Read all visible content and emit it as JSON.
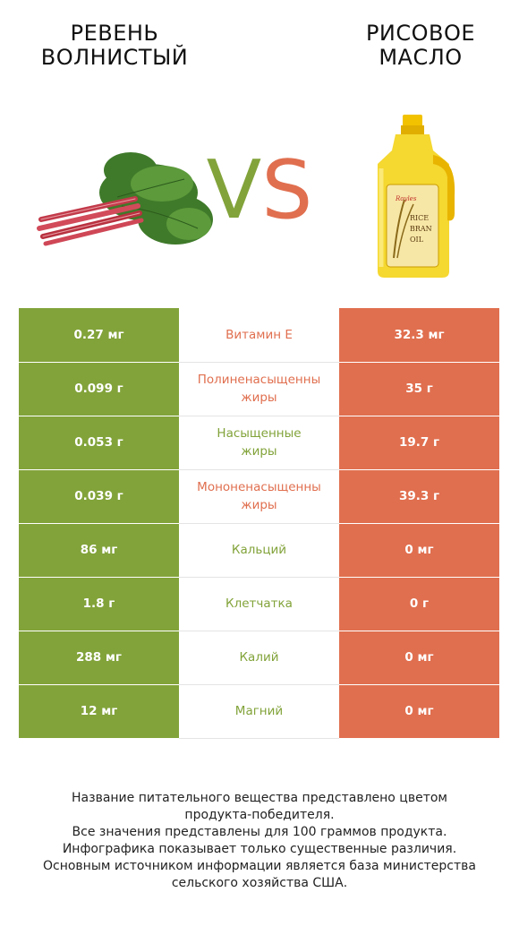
{
  "left_product": {
    "title_line1": "РЕВЕНЬ",
    "title_line2": "ВОЛНИСТЫЙ"
  },
  "right_product": {
    "title_line1": "РИСОВОЕ",
    "title_line2": "МАСЛО"
  },
  "vs": {
    "v": "V",
    "s": "S"
  },
  "colors": {
    "left": "#82a33a",
    "right": "#e06f4f"
  },
  "rows": [
    {
      "left": "0.27 мг",
      "name1": "Витамин E",
      "name2": "",
      "right": "32.3 мг",
      "winner": "right"
    },
    {
      "left": "0.099 г",
      "name1": "Полиненасыщенны",
      "name2": "жиры",
      "right": "35 г",
      "winner": "right"
    },
    {
      "left": "0.053 г",
      "name1": "Насыщенные",
      "name2": "жиры",
      "right": "19.7 г",
      "winner": "left"
    },
    {
      "left": "0.039 г",
      "name1": "Мононенасыщенны",
      "name2": "жиры",
      "right": "39.3 г",
      "winner": "right"
    },
    {
      "left": "86 мг",
      "name1": "Кальций",
      "name2": "",
      "right": "0 мг",
      "winner": "left"
    },
    {
      "left": "1.8 г",
      "name1": "Клетчатка",
      "name2": "",
      "right": "0 г",
      "winner": "left"
    },
    {
      "left": "288 мг",
      "name1": "Калий",
      "name2": "",
      "right": "0 мг",
      "winner": "left"
    },
    {
      "left": "12 мг",
      "name1": "Магний",
      "name2": "",
      "right": "0 мг",
      "winner": "left"
    }
  ],
  "bottle_label": {
    "brand": "Royles",
    "l1": "RICE",
    "l2": "BRAN",
    "l3": "OIL"
  },
  "footer": [
    "Название питательного вещества представлено цветом",
    "продукта-победителя.",
    "Все значения представлены для 100 граммов продукта.",
    "Инфографика показывает только существенные различия.",
    "Основным источником информации является база министерства",
    "сельского хозяйства США."
  ]
}
